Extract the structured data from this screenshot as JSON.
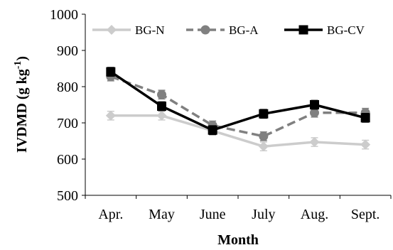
{
  "chart_data": {
    "type": "line",
    "xlabel": "Month",
    "ylabel": {
      "main": "IVDMD (g kg",
      "sup": "-1",
      "close": ")"
    },
    "ylim": [
      500,
      1000
    ],
    "yticks": [
      500,
      600,
      700,
      800,
      900,
      1000
    ],
    "categories": [
      "Apr.",
      "May",
      "June",
      "July",
      "Aug.",
      "Sept."
    ],
    "grid": false,
    "legend_position": "top",
    "series": [
      {
        "name": "BG-N",
        "values": [
          720,
          720,
          678,
          635,
          647,
          640
        ],
        "errors": [
          12,
          12,
          12,
          12,
          12,
          12
        ],
        "color": "#cccccc",
        "dash": "solid",
        "marker": "diamond"
      },
      {
        "name": "BG-A",
        "values": [
          828,
          778,
          693,
          663,
          728,
          728
        ],
        "errors": [
          12,
          12,
          12,
          12,
          12,
          12
        ],
        "color": "#808080",
        "dash": "dashed",
        "marker": "circle"
      },
      {
        "name": "BG-CV",
        "values": [
          841,
          746,
          680,
          725,
          750,
          714
        ],
        "errors": [
          12,
          12,
          12,
          12,
          12,
          12
        ],
        "color": "#000000",
        "dash": "solid",
        "marker": "square"
      }
    ]
  }
}
